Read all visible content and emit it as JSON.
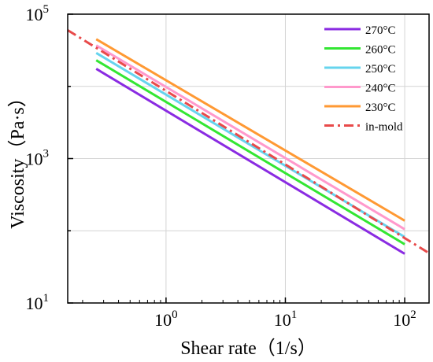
{
  "chart_data": {
    "type": "line",
    "title": "",
    "xlabel": "Shear rate（1/s）",
    "ylabel": "Viscosity（Pa·s）",
    "x_scale": "log",
    "y_scale": "log",
    "xlim": [
      0.15,
      160
    ],
    "ylim": [
      10,
      100000
    ],
    "grid": true,
    "legend_position": "top-right",
    "x_ticks": [
      {
        "value": 1,
        "base": "10",
        "exp": "0"
      },
      {
        "value": 10,
        "base": "10",
        "exp": "1"
      },
      {
        "value": 100,
        "base": "10",
        "exp": "2"
      }
    ],
    "y_ticks": [
      {
        "value": 10,
        "base": "10",
        "exp": "1"
      },
      {
        "value": 1000,
        "base": "10",
        "exp": "3"
      },
      {
        "value": 100000,
        "base": "10",
        "exp": "5"
      }
    ],
    "series": [
      {
        "name": "270°C",
        "color": "#8a2be2",
        "style": "solid",
        "x": [
          0.26,
          100
        ],
        "y": [
          17500,
          48
        ]
      },
      {
        "name": "260°C",
        "color": "#33e633",
        "style": "solid",
        "x": [
          0.26,
          100
        ],
        "y": [
          23000,
          65
        ]
      },
      {
        "name": "250°C",
        "color": "#66d4ee",
        "style": "solid",
        "x": [
          0.26,
          100
        ],
        "y": [
          29000,
          82
        ]
      },
      {
        "name": "240°C",
        "color": "#ff99cc",
        "style": "solid",
        "x": [
          0.26,
          100
        ],
        "y": [
          37000,
          105
        ]
      },
      {
        "name": "230°C",
        "color": "#ff9933",
        "style": "solid",
        "x": [
          0.26,
          100
        ],
        "y": [
          45000,
          138
        ]
      },
      {
        "name": "in-mold",
        "color": "#e84a4a",
        "style": "dashdot",
        "x": [
          0.15,
          160
        ],
        "y": [
          60000,
          49
        ]
      }
    ]
  }
}
